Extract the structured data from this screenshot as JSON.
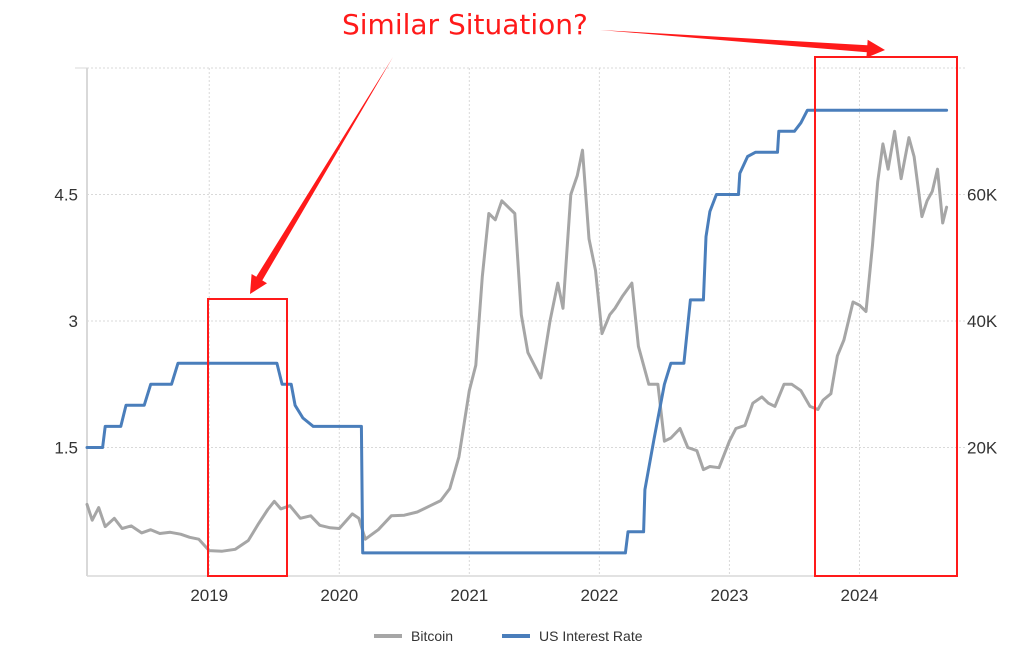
{
  "chart_data": {
    "type": "line",
    "title": "",
    "annotation": "Similar Situation?",
    "xlim": [
      2018.06,
      2024.75
    ],
    "x_ticks": [
      "2019",
      "2020",
      "2021",
      "2022",
      "2023",
      "2024"
    ],
    "y_left": {
      "label": "",
      "lim": [
        0,
        6
      ],
      "ticks": [
        "1.5",
        "3",
        "4.5"
      ]
    },
    "y_right": {
      "label": "",
      "lim": [
        0,
        80000
      ],
      "ticks": [
        "20K",
        "40K",
        "60K"
      ]
    },
    "grid": true,
    "legend_position": "bottom",
    "series": [
      {
        "name": "Bitcoin",
        "axis": "right",
        "color": "#a6a6a6",
        "x": [
          2018.06,
          2018.1,
          2018.15,
          2018.2,
          2018.27,
          2018.33,
          2018.4,
          2018.48,
          2018.55,
          2018.62,
          2018.7,
          2018.78,
          2018.85,
          2018.92,
          2019.0,
          2019.1,
          2019.2,
          2019.3,
          2019.38,
          2019.45,
          2019.5,
          2019.55,
          2019.62,
          2019.7,
          2019.78,
          2019.85,
          2019.93,
          2020.0,
          2020.1,
          2020.15,
          2020.2,
          2020.3,
          2020.4,
          2020.5,
          2020.6,
          2020.7,
          2020.78,
          2020.85,
          2020.92,
          2021.0,
          2021.05,
          2021.1,
          2021.15,
          2021.2,
          2021.25,
          2021.3,
          2021.35,
          2021.4,
          2021.45,
          2021.5,
          2021.55,
          2021.62,
          2021.68,
          2021.72,
          2021.78,
          2021.83,
          2021.87,
          2021.92,
          2021.97,
          2022.02,
          2022.08,
          2022.12,
          2022.18,
          2022.25,
          2022.3,
          2022.38,
          2022.45,
          2022.5,
          2022.55,
          2022.62,
          2022.68,
          2022.75,
          2022.8,
          2022.85,
          2022.92,
          2023.0,
          2023.05,
          2023.12,
          2023.18,
          2023.25,
          2023.3,
          2023.35,
          2023.42,
          2023.48,
          2023.55,
          2023.62,
          2023.68,
          2023.72,
          2023.78,
          2023.83,
          2023.88,
          2023.95,
          2024.0,
          2024.05,
          2024.1,
          2024.14,
          2024.18,
          2024.22,
          2024.27,
          2024.32,
          2024.38,
          2024.42,
          2024.48,
          2024.52,
          2024.56,
          2024.6,
          2024.64,
          2024.67
        ],
        "y": [
          11000,
          8500,
          10500,
          7500,
          8800,
          7200,
          7600,
          6500,
          7000,
          6400,
          6600,
          6300,
          5800,
          5500,
          3700,
          3600,
          3900,
          5300,
          8000,
          10200,
          11500,
          10300,
          10800,
          8800,
          9200,
          7700,
          7300,
          7200,
          9500,
          8800,
          5500,
          7000,
          9200,
          9300,
          9800,
          10800,
          11600,
          13500,
          18500,
          29000,
          33000,
          47000,
          57000,
          56000,
          59000,
          58000,
          57000,
          41000,
          35000,
          33000,
          31000,
          40000,
          46000,
          42000,
          60000,
          63000,
          67000,
          53000,
          48000,
          38000,
          41000,
          42000,
          44000,
          46000,
          36000,
          30000,
          30000,
          21000,
          21500,
          23000,
          20000,
          19500,
          16500,
          17000,
          16800,
          21000,
          23000,
          23500,
          27000,
          28000,
          27000,
          26500,
          30000,
          30000,
          29000,
          26500,
          26000,
          27500,
          28500,
          34500,
          37000,
          43000,
          42500,
          41500,
          52000,
          62000,
          68000,
          64000,
          70000,
          62500,
          69000,
          66000,
          56500,
          59000,
          60500,
          64000,
          55500,
          58000
        ]
      },
      {
        "name": "US Interest Rate",
        "axis": "left",
        "color": "#4a7ebb",
        "x": [
          2018.06,
          2018.18,
          2018.2,
          2018.32,
          2018.36,
          2018.5,
          2018.55,
          2018.71,
          2018.76,
          2018.95,
          2019.0,
          2019.52,
          2019.56,
          2019.63,
          2019.66,
          2019.72,
          2019.8,
          2020.17,
          2020.18,
          2020.25,
          2022.2,
          2022.22,
          2022.34,
          2022.35,
          2022.42,
          2022.5,
          2022.55,
          2022.65,
          2022.7,
          2022.8,
          2022.82,
          2022.85,
          2022.9,
          2022.96,
          2023.07,
          2023.08,
          2023.14,
          2023.2,
          2023.37,
          2023.38,
          2023.5,
          2023.55,
          2023.6,
          2024.67
        ],
        "y": [
          1.5,
          1.5,
          1.75,
          1.75,
          2.0,
          2.0,
          2.25,
          2.25,
          2.5,
          2.5,
          2.5,
          2.5,
          2.25,
          2.25,
          2.0,
          1.85,
          1.75,
          1.75,
          0.25,
          0.25,
          0.25,
          0.5,
          0.5,
          1.0,
          1.6,
          2.25,
          2.5,
          2.5,
          3.25,
          3.25,
          4.0,
          4.3,
          4.5,
          4.5,
          4.5,
          4.75,
          4.95,
          5.0,
          5.0,
          5.25,
          5.25,
          5.35,
          5.5,
          5.5
        ]
      }
    ]
  }
}
